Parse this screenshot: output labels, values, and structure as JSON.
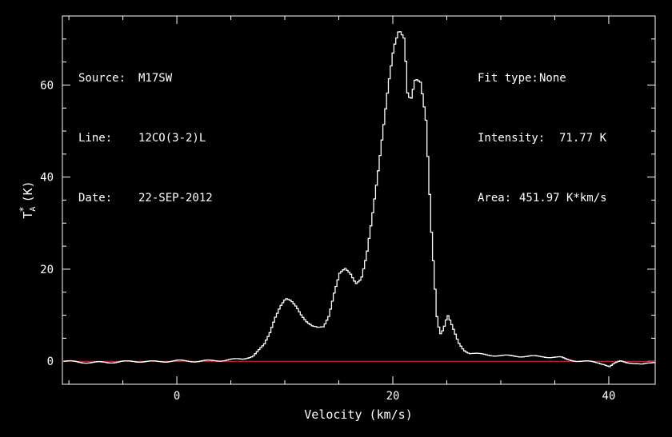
{
  "header_left": {
    "source_label": "Source:",
    "source_value": "M17SW",
    "line_label": "Line:",
    "line_value": "12CO(3-2)L",
    "date_label": "Date:",
    "date_value": "22-SEP-2012"
  },
  "header_right": {
    "fit_label": "Fit type:",
    "fit_value": "None",
    "intensity_label": "Intensity:",
    "intensity_value": "71.77 K",
    "area_label": "Area:",
    "area_value": "451.97 K*km/s"
  },
  "chart_data": {
    "type": "line",
    "title": "",
    "xlabel": "Velocity (km/s)",
    "ylabel_main": "T",
    "ylabel_sup": "*",
    "ylabel_sub": "A",
    "ylabel_unit": "(K)",
    "xlim": [
      -10.6,
      44.3
    ],
    "ylim": [
      -5,
      75
    ],
    "xticks": [
      0,
      20,
      40
    ],
    "xtick_labels": [
      "0",
      "20",
      "40"
    ],
    "yticks": [
      0,
      20,
      40,
      60
    ],
    "ytick_labels": [
      "0",
      "20",
      "40",
      "60"
    ],
    "grid": false,
    "colors": {
      "spectrum": "#ffffff",
      "baseline": "#e03030",
      "axes": "#ffffff",
      "background": "#000000"
    },
    "baseline_y": 0,
    "series": [
      {
        "x": [
          -10.5,
          -8,
          -6,
          -4,
          -2,
          0,
          2,
          4,
          6,
          7,
          8,
          8.5,
          9,
          9.5,
          10,
          10.5,
          11,
          11.5,
          12,
          12.5,
          13,
          13.5,
          14,
          14.5,
          15,
          15.5,
          16,
          16.5,
          17,
          17.5,
          18,
          18.5,
          19,
          19.5,
          20,
          20.5,
          21,
          21.3,
          21.6,
          22,
          22.5,
          23,
          23.5,
          24,
          24.3,
          24.6,
          25,
          25.5,
          26,
          26.5,
          27,
          28,
          30,
          32,
          34,
          35.5,
          36,
          37,
          38,
          39,
          39.5,
          40,
          40.5,
          41,
          42,
          43,
          44,
          44.3
        ],
        "y": [
          0,
          -0.3,
          -0.2,
          0,
          -0.1,
          0.1,
          0,
          0.2,
          0.5,
          1.2,
          3.5,
          6,
          9.5,
          12,
          13.5,
          13,
          11.8,
          10,
          8.5,
          7.5,
          7.2,
          7.5,
          10,
          15,
          19,
          20,
          19,
          17,
          18,
          23,
          31,
          40,
          50,
          60,
          68,
          71.8,
          70,
          58,
          57,
          61.5,
          60.5,
          52,
          28,
          10,
          6,
          7,
          10,
          7,
          4,
          2.5,
          1.8,
          1.5,
          1.2,
          1.1,
          1.0,
          0.8,
          0.4,
          0.1,
          -0.1,
          -0.3,
          -0.6,
          -1.2,
          -0.5,
          0,
          -0.3,
          -0.8,
          -0.2,
          0
        ]
      }
    ]
  }
}
